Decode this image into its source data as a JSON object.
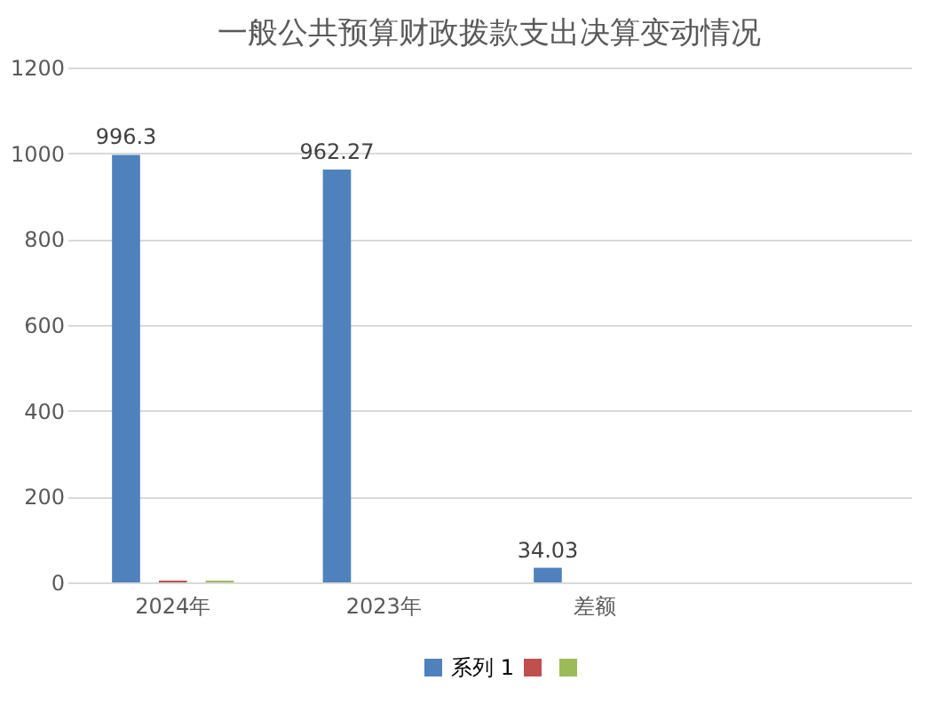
{
  "chart_data": {
    "type": "bar",
    "title": "一般公共预算财政拨款支出决算变动情况",
    "categories": [
      "2024年",
      "2023年",
      "差额",
      null
    ],
    "series": [
      {
        "name": "系列 1",
        "color": "#4f81bd",
        "values": [
          996.3,
          962.27,
          34.03,
          null
        ],
        "value_labels": [
          "996.3",
          "962.27",
          "34.03",
          null
        ]
      },
      {
        "color": "#c0504d",
        "values": [
          4,
          null,
          null,
          null
        ]
      },
      {
        "color": "#9bbb59",
        "values": [
          4,
          null,
          null,
          null
        ]
      }
    ],
    "ylim": [
      0,
      1200
    ],
    "yticks": [
      0,
      200,
      400,
      600,
      800,
      1000,
      1200
    ],
    "grid": "y",
    "legend": "bottom"
  }
}
